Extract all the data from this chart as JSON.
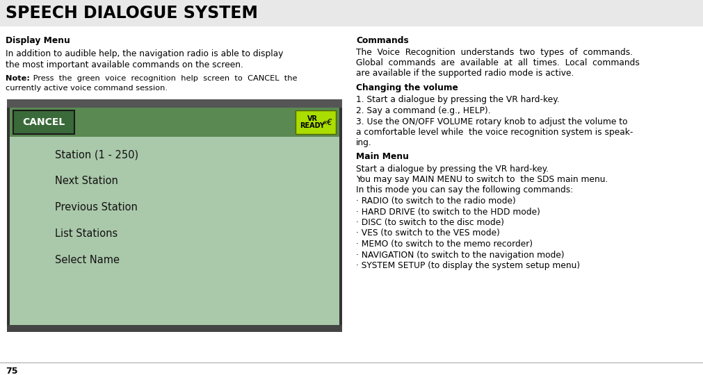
{
  "title": "SPEECH DIALOGUE SYSTEM",
  "title_bg": "#e8e8e8",
  "page_bg": "#ffffff",
  "section1_heading": "Display Menu",
  "section1_note_bold": "Note:",
  "screen_cancel_text": "CANCEL",
  "screen_vr_line1": "VR",
  "screen_vr_line2": "READY",
  "screen_menu_items": [
    "Station (1 - 250)",
    "Next Station",
    "Previous Station",
    "List Stations",
    "Select Name"
  ],
  "screen_header_color": "#5a8a52",
  "screen_body_color": "#aac8aa",
  "screen_outer_bg": "#555555",
  "screen_cancel_bg": "#3a6a3a",
  "screen_vr_bg": "#aadd00",
  "right_heading1": "Commands",
  "right_heading2": "Changing the volume",
  "right_heading3": "Main Menu",
  "right_bullets": [
    "· RADIO (to switch to the radio mode)",
    "· HARD DRIVE (to switch to the HDD mode)",
    "· DISC (to switch to the disc mode)",
    "· VES (to switch to the VES mode)",
    "· MEMO (to switch to the memo recorder)",
    "· NAVIGATION (to switch to the navigation mode)",
    "· SYSTEM SETUP (to display the system setup menu)"
  ],
  "footer_text": "75",
  "text_color": "#000000",
  "title_fontsize": 17,
  "body_fontsize": 8.8,
  "note_fontsize": 8.2,
  "menu_item_fontsize": 10.5
}
